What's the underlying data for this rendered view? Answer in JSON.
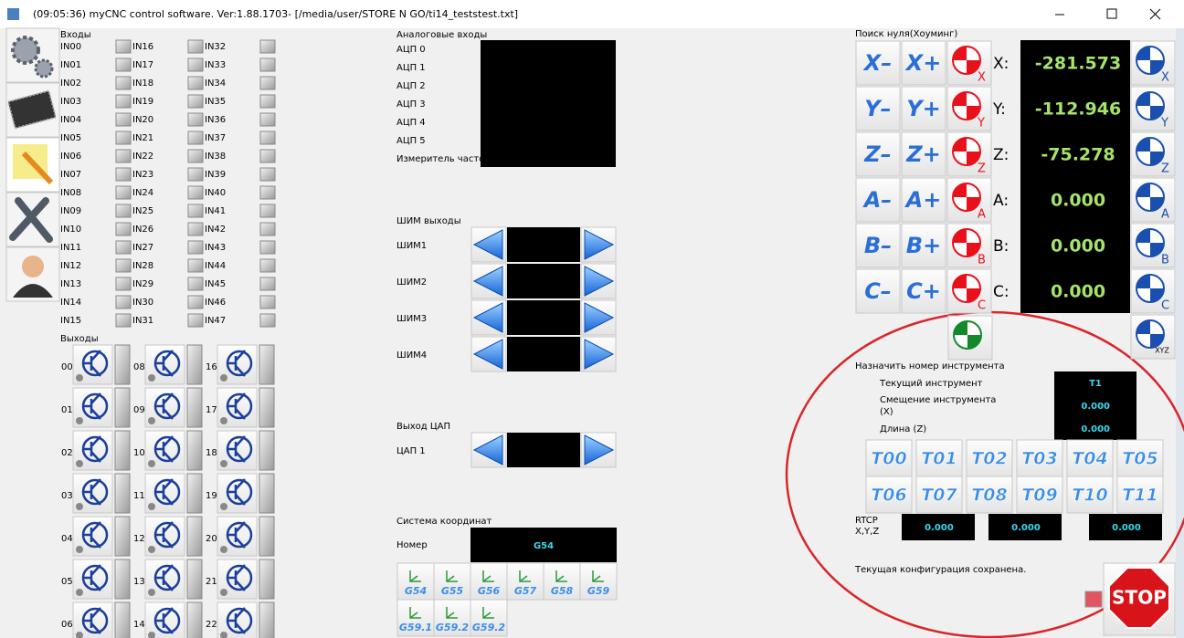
{
  "window": {
    "title": "(09:05:36)  myCNC control software. Ver:1.88.1703-   [/media/user/STORE N GO/ti14_teststest.txt]"
  },
  "inputs": {
    "title": "Входы",
    "labels": [
      "IN00",
      "IN01",
      "IN02",
      "IN03",
      "IN04",
      "IN05",
      "IN06",
      "IN07",
      "IN08",
      "IN09",
      "IN10",
      "IN11",
      "IN12",
      "IN13",
      "IN14",
      "IN15",
      "IN16",
      "IN17",
      "IN18",
      "IN19",
      "IN20",
      "IN21",
      "IN22",
      "IN23",
      "IN24",
      "IN25",
      "IN26",
      "IN27",
      "IN28",
      "IN29",
      "IN30",
      "IN31",
      "IN32",
      "IN33",
      "IN34",
      "IN35",
      "IN36",
      "IN37",
      "IN38",
      "IN39",
      "IN40",
      "IN41",
      "IN42",
      "IN43",
      "IN44",
      "IN45",
      "IN46",
      "IN47"
    ]
  },
  "outputs": {
    "title": "Выходы",
    "labels": [
      "00",
      "01",
      "02",
      "03",
      "04",
      "05",
      "06",
      "08",
      "09",
      "10",
      "11",
      "12",
      "13",
      "14",
      "16",
      "17",
      "18",
      "19",
      "20",
      "21",
      "22"
    ]
  },
  "analog": {
    "title": "Аналоговые входы",
    "labels": [
      "АЦП 0",
      "АЦП 1",
      "АЦП 2",
      "АЦП 3",
      "АЦП 4",
      "АЦП 5",
      "Измеритель частоты"
    ]
  },
  "pwm": {
    "title": "ШИМ выходы",
    "labels": [
      "ШИМ1",
      "ШИМ2",
      "ШИМ3",
      "ШИМ4"
    ]
  },
  "dac": {
    "title": "Выход ЦАП",
    "labels": [
      "ЦАП 1"
    ]
  },
  "coords": {
    "title": "Система координат",
    "number_label": "Номер",
    "value": "G54",
    "buttons": [
      "G54",
      "G55",
      "G56",
      "G57",
      "G58",
      "G59",
      "G59.1",
      "G59.2",
      "G59.2"
    ]
  },
  "homing": {
    "title": "Поиск нуля(Хоуминг)",
    "jog": [
      [
        "X–",
        "X+"
      ],
      [
        "Y–",
        "Y+"
      ],
      [
        "Z–",
        "Z+"
      ],
      [
        "A–",
        "A+"
      ],
      [
        "B–",
        "B+"
      ],
      [
        "C–",
        "C+"
      ]
    ],
    "home_letters": [
      "X",
      "Y",
      "Z",
      "A",
      "B",
      "C"
    ],
    "axes": [
      {
        "label": "X:",
        "value": "-281.573"
      },
      {
        "label": "Y:",
        "value": "-112.946"
      },
      {
        "label": "Z:",
        "value": "-75.278"
      },
      {
        "label": "A:",
        "value": "0.000"
      },
      {
        "label": "B:",
        "value": "0.000"
      },
      {
        "label": "C:",
        "value": "0.000"
      }
    ],
    "all_label": "XYZ"
  },
  "tool": {
    "title": "Назначить номер инструмента",
    "current_label": "Текущий инструмент",
    "current": "T1",
    "offset_label": [
      "Смещение инструмента",
      "(X)"
    ],
    "offset": "0.000",
    "length_label": "Длина (Z)",
    "length": "0.000",
    "buttons": [
      "T00",
      "T01",
      "T02",
      "T03",
      "T04",
      "T05",
      "T06",
      "T07",
      "T08",
      "T09",
      "T10",
      "T11"
    ]
  },
  "rtcp": {
    "label": [
      "RTCP",
      "X,Y,Z"
    ],
    "values": [
      "0.000",
      "0.000",
      "0.000"
    ]
  },
  "status": "Текущая конфигурация сохранена.",
  "stop": "STOP"
}
